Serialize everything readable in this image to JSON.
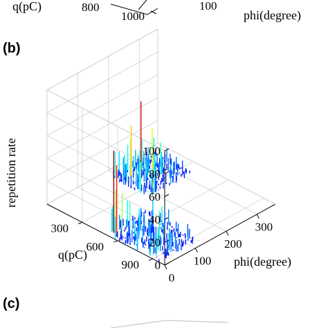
{
  "top_fragment": {
    "q_label": "q(pC)",
    "phi_label": "phi(degree)",
    "ticks": [
      "800",
      "1000",
      "100"
    ]
  },
  "panel_b_label": "(b)",
  "panel_c_label": "(c)",
  "chart_data": {
    "type": "bar3d",
    "zlabel": "repetition rate",
    "xlabel": "phi(degree)",
    "ylabel": "q(pC)",
    "z_ticks": [
      "0",
      "20",
      "40",
      "60",
      "80",
      "100"
    ],
    "phi_ticks": [
      "0",
      "100",
      "200",
      "300"
    ],
    "q_ticks": [
      "300",
      "600",
      "900"
    ],
    "zlim": [
      0,
      100
    ],
    "phi_lim": [
      0,
      360
    ],
    "q_lim": [
      0,
      1000
    ],
    "grid": true,
    "colormap": "jet",
    "clusters": [
      {
        "phi_range": [
          0,
          130
        ],
        "q_range": [
          500,
          960
        ],
        "peaks": [
          {
            "phi": 12,
            "q": 560,
            "z": 62
          },
          {
            "phi": 18,
            "q": 520,
            "z": 72
          },
          {
            "phi": 30,
            "q": 560,
            "z": 35
          },
          {
            "phi": 40,
            "q": 600,
            "z": 28
          },
          {
            "phi": 55,
            "q": 640,
            "z": 22
          }
        ]
      },
      {
        "phi_range": [
          180,
          320
        ],
        "q_range": [
          80,
          400
        ],
        "peaks": [
          {
            "phi": 225,
            "q": 210,
            "z": 68
          },
          {
            "phi": 205,
            "q": 180,
            "z": 48
          },
          {
            "phi": 250,
            "q": 240,
            "z": 42
          },
          {
            "phi": 270,
            "q": 260,
            "z": 28
          }
        ]
      }
    ]
  }
}
